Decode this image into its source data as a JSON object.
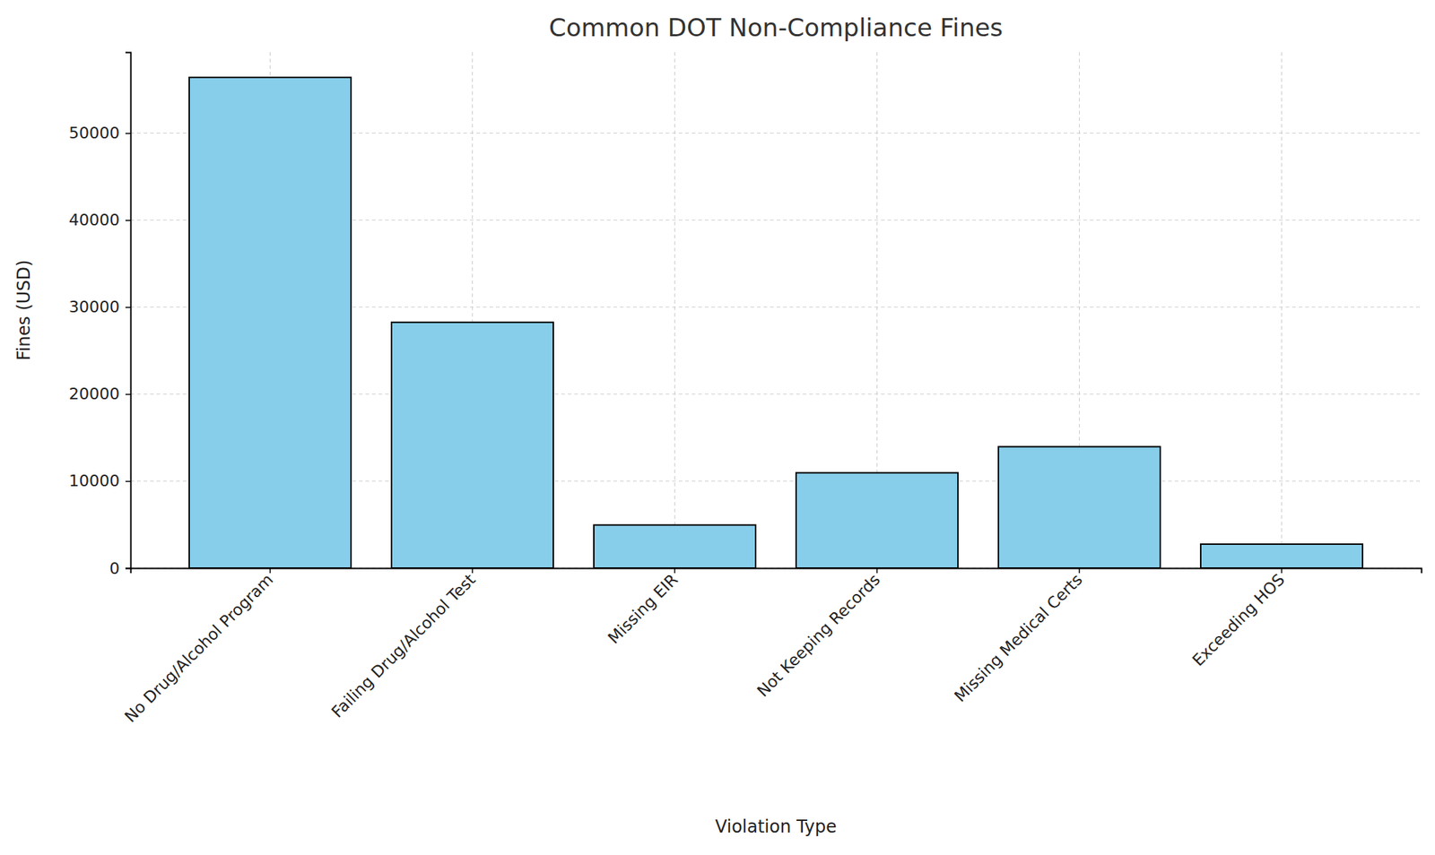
{
  "chart_data": {
    "type": "bar",
    "title": "Common DOT Non-Compliance Fines",
    "x_label": "Violation Type",
    "y_label": "Fines (USD)",
    "categories": [
      "No Drug/Alcohol Program",
      "Failing Drug/Alcohol Test",
      "Missing EIR",
      "Not Keeping Records",
      "Missing Medical Certs",
      "Exceeding HOS"
    ],
    "values": [
      56400,
      28250,
      4950,
      10950,
      13950,
      2750
    ],
    "color": "#87ceeb",
    "ylim": [
      0,
      59300
    ],
    "yticks": [
      0,
      10000,
      20000,
      30000,
      40000,
      50000
    ],
    "grid": true
  }
}
